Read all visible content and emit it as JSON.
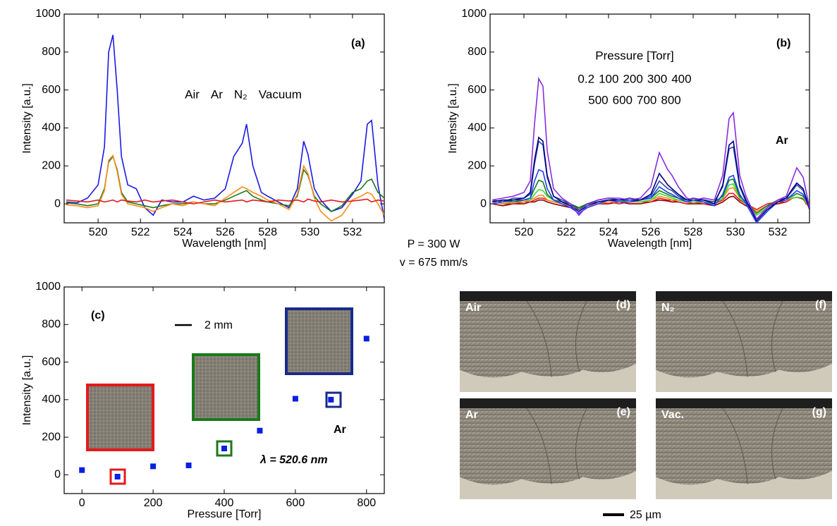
{
  "chart_data": [
    {
      "type": "line",
      "panel_label": "(a)",
      "x_label": "Wavelength [nm]",
      "y_label": "Intensity [a.u.]",
      "x": [
        518.5,
        519,
        519.5,
        520,
        520.3,
        520.5,
        520.7,
        520.9,
        521.1,
        521.4,
        521.8,
        522.2,
        522.6,
        523,
        523.5,
        524,
        524.5,
        525,
        525.5,
        526,
        526.4,
        526.8,
        527,
        527.3,
        527.7,
        528,
        528.5,
        529,
        529.4,
        529.7,
        529.9,
        530.2,
        530.5,
        531,
        531.5,
        532,
        532.4,
        532.7,
        532.9,
        533.2,
        533.5
      ],
      "xlim": [
        518.4,
        533.5
      ],
      "xticks": [
        520,
        522,
        524,
        526,
        528,
        530,
        532
      ],
      "ylim": [
        -100,
        1000
      ],
      "yticks": [
        0,
        200,
        400,
        600,
        800,
        1000
      ],
      "series": [
        {
          "name": "Air",
          "color": "#1a1ae6",
          "values": [
            10,
            5,
            30,
            100,
            300,
            800,
            890,
            600,
            250,
            100,
            80,
            -20,
            -60,
            20,
            10,
            10,
            40,
            20,
            30,
            80,
            250,
            320,
            420,
            200,
            60,
            40,
            10,
            -20,
            80,
            330,
            260,
            80,
            20,
            -40,
            -20,
            50,
            120,
            420,
            440,
            100,
            -80
          ]
        },
        {
          "name": "Ar",
          "color": "#1a7a1a",
          "values": [
            5,
            0,
            -10,
            0,
            80,
            220,
            250,
            180,
            60,
            10,
            0,
            -10,
            -20,
            -10,
            0,
            0,
            10,
            0,
            0,
            20,
            40,
            60,
            70,
            40,
            20,
            10,
            0,
            -10,
            40,
            180,
            150,
            40,
            0,
            -40,
            -10,
            60,
            80,
            120,
            130,
            60,
            30
          ]
        },
        {
          "name": "N₂",
          "color": "#ff8c1a",
          "values": [
            -5,
            -10,
            -20,
            -10,
            70,
            230,
            255,
            170,
            50,
            0,
            -10,
            -20,
            -40,
            -20,
            0,
            -10,
            10,
            0,
            -10,
            30,
            60,
            90,
            80,
            60,
            40,
            20,
            0,
            -30,
            50,
            200,
            160,
            30,
            -40,
            -90,
            -60,
            20,
            40,
            60,
            50,
            0,
            -60
          ]
        },
        {
          "name": "Vacuum",
          "color": "#e31a1c",
          "values": [
            20,
            15,
            10,
            20,
            10,
            15,
            20,
            10,
            20,
            15,
            10,
            20,
            10,
            15,
            20,
            10,
            0,
            10,
            20,
            10,
            15,
            20,
            10,
            20,
            15,
            10,
            20,
            15,
            20,
            10,
            25,
            15,
            10,
            20,
            10,
            15,
            20,
            25,
            10,
            20,
            15
          ]
        }
      ]
    },
    {
      "type": "line",
      "panel_label": "(b)",
      "x_label": "Wavelength [nm]",
      "y_label": "Intensity [a.u.]",
      "legend_title": "Pressure [Torr]",
      "annotation": "Ar",
      "x": [
        518.5,
        519,
        519.5,
        520,
        520.3,
        520.5,
        520.7,
        520.9,
        521.1,
        521.4,
        521.8,
        522.2,
        522.6,
        523,
        523.5,
        524,
        524.5,
        525,
        525.5,
        526,
        526.4,
        526.8,
        527,
        527.3,
        527.7,
        528,
        528.5,
        529,
        529.4,
        529.7,
        529.9,
        530.2,
        530.5,
        531,
        531.5,
        532,
        532.4,
        532.7,
        532.9,
        533.2,
        533.5
      ],
      "xlim": [
        518.4,
        533.5
      ],
      "xticks": [
        520,
        522,
        524,
        526,
        528,
        530,
        532
      ],
      "ylim": [
        -100,
        1000
      ],
      "yticks": [
        0,
        200,
        400,
        600,
        800,
        1000
      ],
      "series": [
        {
          "name": "0.2",
          "color": "#8b0000",
          "values": [
            0,
            -10,
            0,
            0,
            10,
            10,
            20,
            20,
            10,
            0,
            -10,
            -20,
            -30,
            -10,
            0,
            0,
            10,
            0,
            0,
            10,
            20,
            15,
            10,
            10,
            0,
            0,
            0,
            -10,
            10,
            35,
            40,
            10,
            -10,
            -40,
            -10,
            0,
            10,
            30,
            35,
            25,
            -20
          ]
        },
        {
          "name": "100",
          "color": "#e31a1c",
          "values": [
            10,
            0,
            0,
            10,
            10,
            20,
            30,
            30,
            20,
            10,
            0,
            -10,
            -20,
            0,
            0,
            10,
            0,
            10,
            10,
            10,
            30,
            20,
            20,
            10,
            0,
            10,
            0,
            0,
            20,
            55,
            55,
            20,
            0,
            -30,
            0,
            10,
            10,
            30,
            35,
            30,
            -10
          ]
        },
        {
          "name": "200",
          "color": "#ff8c1a",
          "values": [
            10,
            0,
            10,
            10,
            20,
            30,
            45,
            45,
            20,
            10,
            0,
            -10,
            -30,
            -10,
            0,
            10,
            10,
            10,
            10,
            20,
            40,
            30,
            20,
            20,
            10,
            10,
            10,
            0,
            30,
            80,
            85,
            30,
            0,
            -40,
            -10,
            10,
            20,
            30,
            35,
            30,
            -20
          ]
        },
        {
          "name": "300",
          "color": "#33dd33",
          "values": [
            20,
            10,
            10,
            20,
            20,
            50,
            75,
            70,
            40,
            20,
            10,
            0,
            -30,
            -10,
            10,
            20,
            10,
            20,
            10,
            20,
            55,
            40,
            30,
            20,
            10,
            10,
            10,
            0,
            30,
            100,
            105,
            30,
            0,
            -60,
            -20,
            20,
            30,
            30,
            35,
            30,
            -10
          ]
        },
        {
          "name": "400",
          "color": "#1a7a1a",
          "values": [
            10,
            20,
            10,
            20,
            30,
            80,
            125,
            115,
            50,
            20,
            10,
            0,
            -20,
            0,
            10,
            20,
            20,
            20,
            20,
            30,
            70,
            50,
            40,
            30,
            20,
            20,
            20,
            10,
            40,
            125,
            130,
            40,
            10,
            -50,
            -10,
            20,
            30,
            40,
            55,
            40,
            0
          ]
        },
        {
          "name": "500",
          "color": "#1f3fff",
          "values": [
            0,
            10,
            20,
            20,
            30,
            120,
            180,
            170,
            80,
            20,
            0,
            -20,
            -50,
            -20,
            0,
            20,
            10,
            10,
            20,
            30,
            90,
            60,
            50,
            30,
            10,
            20,
            10,
            -10,
            50,
            140,
            150,
            50,
            0,
            -100,
            -40,
            10,
            20,
            50,
            70,
            50,
            -20
          ]
        },
        {
          "name": "600",
          "color": "#2a4aa8",
          "values": [
            20,
            10,
            30,
            30,
            50,
            210,
            330,
            310,
            140,
            40,
            20,
            0,
            -30,
            0,
            20,
            30,
            20,
            30,
            20,
            40,
            120,
            80,
            70,
            40,
            20,
            30,
            20,
            10,
            90,
            290,
            300,
            90,
            10,
            -80,
            -20,
            20,
            30,
            70,
            100,
            70,
            -10
          ]
        },
        {
          "name": "700",
          "color": "#000080",
          "values": [
            10,
            20,
            20,
            30,
            60,
            230,
            350,
            330,
            150,
            40,
            10,
            -10,
            -40,
            -10,
            10,
            20,
            20,
            20,
            20,
            50,
            160,
            100,
            80,
            50,
            20,
            20,
            20,
            0,
            100,
            310,
            330,
            100,
            20,
            -90,
            -30,
            10,
            30,
            80,
            110,
            80,
            -30
          ]
        },
        {
          "name": "800",
          "color": "#8a2be2",
          "values": [
            20,
            30,
            40,
            60,
            120,
            420,
            660,
            620,
            280,
            80,
            30,
            0,
            -60,
            -10,
            20,
            30,
            30,
            20,
            30,
            90,
            270,
            180,
            150,
            90,
            30,
            20,
            30,
            20,
            150,
            450,
            480,
            150,
            40,
            -80,
            -20,
            20,
            40,
            130,
            190,
            140,
            -20
          ]
        }
      ]
    },
    {
      "type": "scatter",
      "panel_label": "(c)",
      "x_label": "Pressure [Torr]",
      "y_label": "Intensity [a.u.]",
      "x": [
        0,
        100,
        200,
        300,
        400,
        500,
        600,
        700,
        800
      ],
      "values": [
        25,
        -10,
        45,
        50,
        140,
        235,
        405,
        400,
        725
      ],
      "color": "#0a1fe0",
      "xlim": [
        -50,
        850
      ],
      "xticks": [
        0,
        200,
        400,
        600,
        800
      ],
      "ylim": [
        -100,
        1000
      ],
      "yticks": [
        0,
        200,
        400,
        600,
        800,
        1000
      ],
      "scale_label": "2 mm",
      "gas": "Ar",
      "wavelength": "λ = 520.6 nm"
    }
  ],
  "process": {
    "power": "P = 300 W",
    "speed": "v = 675 mm/s"
  },
  "micrographs": [
    {
      "panel": "(d)",
      "gas": "Air"
    },
    {
      "panel": "(f)",
      "gas": "N₂"
    },
    {
      "panel": "(e)",
      "gas": "Ar"
    },
    {
      "panel": "(g)",
      "gas": "Vac."
    }
  ],
  "scale_bar": "25 µm"
}
